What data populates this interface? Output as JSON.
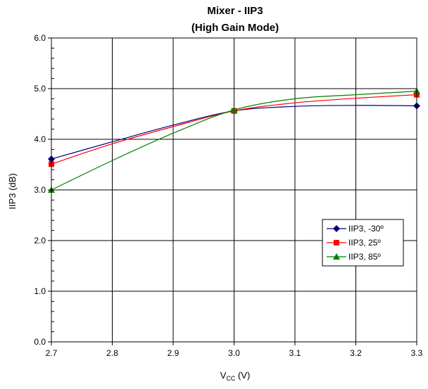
{
  "chart_data": {
    "type": "line",
    "title": "Mixer - IIP3",
    "subtitle": "(High Gain Mode)",
    "xlabel_main": "V",
    "xlabel_sub": "CC",
    "xlabel_unit": " (V)",
    "ylabel": "IIP3 (dB)",
    "xlim": [
      2.7,
      3.3
    ],
    "ylim": [
      0.0,
      6.0
    ],
    "x_ticks": [
      "2.7",
      "2.8",
      "2.9",
      "3.0",
      "3.1",
      "3.2",
      "3.3"
    ],
    "y_ticks": [
      "0.0",
      "1.0",
      "2.0",
      "3.0",
      "4.0",
      "5.0",
      "6.0"
    ],
    "grid": true,
    "legend_position": "lower-right",
    "series": [
      {
        "name": "IIP3, -30º",
        "color": "#000080",
        "marker": "diamond",
        "points": [
          [
            2.7,
            3.61
          ],
          [
            3.0,
            4.56
          ],
          [
            3.3,
            4.66
          ]
        ],
        "curve": [
          [
            2.7,
            3.61
          ],
          [
            2.8,
            3.95
          ],
          [
            2.9,
            4.28
          ],
          [
            3.0,
            4.56
          ],
          [
            3.1,
            4.65
          ],
          [
            3.2,
            4.67
          ],
          [
            3.3,
            4.66
          ]
        ]
      },
      {
        "name": "IIP3, 25º",
        "color": "#ff0000",
        "marker": "square",
        "points": [
          [
            2.7,
            3.51
          ],
          [
            3.0,
            4.56
          ],
          [
            3.3,
            4.88
          ]
        ],
        "curve": [
          [
            2.7,
            3.51
          ],
          [
            2.8,
            3.91
          ],
          [
            2.9,
            4.25
          ],
          [
            3.0,
            4.56
          ],
          [
            3.1,
            4.72
          ],
          [
            3.2,
            4.81
          ],
          [
            3.3,
            4.88
          ]
        ]
      },
      {
        "name": "IIP3, 85º",
        "color": "#008000",
        "marker": "triangle",
        "points": [
          [
            2.7,
            3.0
          ],
          [
            3.0,
            4.58
          ],
          [
            3.3,
            4.95
          ]
        ],
        "curve": [
          [
            2.7,
            3.0
          ],
          [
            2.8,
            3.58
          ],
          [
            2.9,
            4.12
          ],
          [
            3.0,
            4.58
          ],
          [
            3.1,
            4.8
          ],
          [
            3.2,
            4.88
          ],
          [
            3.3,
            4.95
          ]
        ]
      }
    ]
  }
}
